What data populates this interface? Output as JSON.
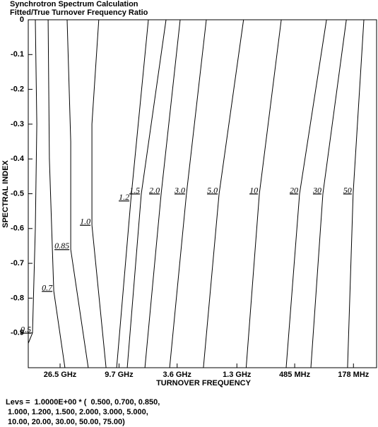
{
  "chart_data": {
    "type": "contour",
    "title": "Synchrotron Spectrum Calculation",
    "subtitle": "Fitted/True Turnover Frequency Ratio",
    "x_label": "TURNOVER FREQUENCY",
    "y_label": "SPECTRAL INDEX",
    "xscale": "log",
    "xlim": [
      45.6,
      0.12
    ],
    "ylim": [
      -1,
      0
    ],
    "xticks": [
      {
        "value": 26.5,
        "label": "26.5 GHz"
      },
      {
        "value": 9.7,
        "label": "9.7 GHz"
      },
      {
        "value": 3.6,
        "label": "3.6 GHz"
      },
      {
        "value": 1.3,
        "label": "1.3 GHz"
      },
      {
        "value": 0.485,
        "label": "485 MHz"
      },
      {
        "value": 0.178,
        "label": "178 MHz"
      }
    ],
    "yticks": [
      0,
      -0.1,
      -0.2,
      -0.3,
      -0.4,
      -0.5,
      -0.6,
      -0.7,
      -0.8,
      -0.9
    ],
    "color": "#000000",
    "series": [
      {
        "name": "0.5",
        "x": [
          40.4,
          39.4,
          40.4,
          42.4,
          45.6
        ],
        "y": [
          0,
          -0.3,
          -0.6,
          -0.9,
          -0.93
        ]
      },
      {
        "name": "0.7",
        "x": [
          32.5,
          31.8,
          29.5,
          24.4
        ],
        "y": [
          0,
          -0.4,
          -0.78,
          -1
        ]
      },
      {
        "name": "0.85",
        "x": [
          23.5,
          22.1,
          22.1,
          16.4
        ],
        "y": [
          0,
          -0.35,
          -0.66,
          -1
        ]
      },
      {
        "name": "1.0",
        "x": [
          13.7,
          15.4,
          15.4,
          12.1
        ],
        "y": [
          0,
          -0.3,
          -0.59,
          -1
        ]
      },
      {
        "name": "1.2",
        "x": [
          5.88,
          7.94,
          10.1
        ],
        "y": [
          0,
          -0.52,
          -1
        ]
      },
      {
        "name": "1.5",
        "x": [
          4.35,
          6.63,
          8.43
        ],
        "y": [
          0,
          -0.5,
          -1
        ]
      },
      {
        "name": "2.0",
        "x": [
          3.42,
          4.73,
          6.24
        ],
        "y": [
          0,
          -0.5,
          -1
        ]
      },
      {
        "name": "3.0",
        "x": [
          2.19,
          3.07,
          4.09
        ],
        "y": [
          0,
          -0.5,
          -1
        ]
      },
      {
        "name": "5.0",
        "x": [
          1.16,
          1.76,
          2.3
        ],
        "y": [
          0,
          -0.5,
          -1
        ]
      },
      {
        "name": "10",
        "x": [
          0.61,
          0.886,
          1.11
        ],
        "y": [
          0,
          -0.5,
          -1
        ]
      },
      {
        "name": "20",
        "x": [
          0.282,
          0.446,
          0.561
        ],
        "y": [
          0,
          -0.5,
          -1
        ]
      },
      {
        "name": "30",
        "x": [
          0.201,
          0.3,
          0.368
        ],
        "y": [
          0,
          -0.5,
          -1
        ]
      },
      {
        "name": "50",
        "x": [
          0.149,
          0.179,
          0.197
        ],
        "y": [
          0,
          -0.5,
          -1
        ]
      }
    ],
    "notes": [
      "Levs =  1.0000E+00 * (  0.500, 0.700, 0.850,",
      " 1.000, 1.200, 1.500, 2.000, 3.000, 5.000,",
      " 10.00, 20.00, 30.00, 50.00, 75.00)"
    ]
  }
}
